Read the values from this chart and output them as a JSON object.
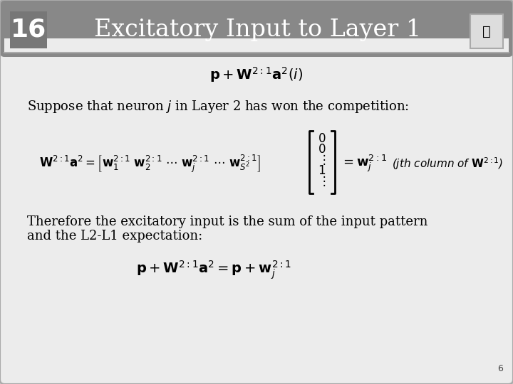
{
  "title": "Excitatory Input to Layer 1",
  "slide_number": "16",
  "bg_color": "#c8c8c8",
  "content_bg": "#ececec",
  "header_bg": "#888888",
  "header_text_color": "#ffffff",
  "border_color": "#aaaaaa",
  "page_number": "6"
}
